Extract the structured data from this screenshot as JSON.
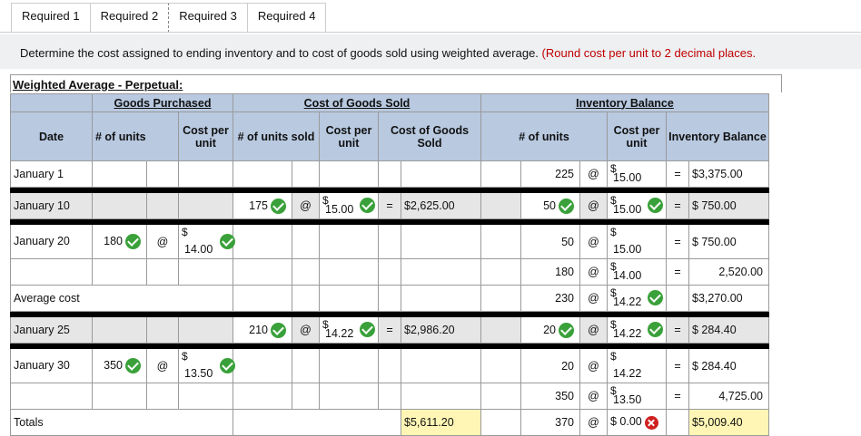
{
  "tabs": [
    "Required 1",
    "Required 2",
    "Required 3",
    "Required 4"
  ],
  "prompt": {
    "text": "Determine the cost assigned to ending inventory and to cost of goods sold using weighted average.",
    "note": "(Round cost per unit to 2 decimal places."
  },
  "section_title": "Weighted Average - Perpetual:",
  "headers": {
    "goods_purchased": "Goods Purchased",
    "cogs": "Cost of Goods Sold",
    "inv_balance": "Inventory Balance",
    "date": "Date",
    "num_units": "# of units",
    "cost_per_unit": "Cost per unit",
    "num_units_sold": "# of units sold",
    "cost_of_goods_sold": "Cost of Goods Sold",
    "inventory_balance": "Inventory Balance"
  },
  "symbols": {
    "at": "@",
    "eq": "=",
    "dollar": "$"
  },
  "rows": {
    "jan1": {
      "date": "January 1",
      "bal_units": "225",
      "bal_cost": "15.00",
      "bal_total": "$3,375.00"
    },
    "jan10": {
      "date": "January 10",
      "sold_units": "175",
      "sold_cost": "15.00",
      "cogs": "$2,625.00",
      "bal_units": "50",
      "bal_cost": "15.00",
      "bal_total": "$  750.00"
    },
    "jan20a": {
      "date": "January 20",
      "pur_units": "180",
      "pur_cost": "14.00",
      "bal_units": "50",
      "bal_cost": "15.00",
      "bal_total": "$  750.00"
    },
    "jan20b": {
      "bal_units": "180",
      "bal_cost": "14.00",
      "bal_total": "2,520.00"
    },
    "avg": {
      "date": "Average cost",
      "bal_units": "230",
      "bal_cost": "14.22",
      "bal_total": "$3,270.00"
    },
    "jan25": {
      "date": "January 25",
      "sold_units": "210",
      "sold_cost": "14.22",
      "cogs": "$2,986.20",
      "bal_units": "20",
      "bal_cost": "14.22",
      "bal_total": "$  284.40"
    },
    "jan30a": {
      "date": "January 30",
      "pur_units": "350",
      "pur_cost": "13.50",
      "bal_units": "20",
      "bal_cost": "14.22",
      "bal_total": "$  284.40"
    },
    "jan30b": {
      "bal_units": "350",
      "bal_cost": "13.50",
      "bal_total": "4,725.00"
    },
    "totals": {
      "date": "Totals",
      "cogs": "$5,611.20",
      "bal_units": "370",
      "bal_cost": "$ 0.00",
      "bal_total": "$5,009.40"
    }
  },
  "colors": {
    "header_bg": "#b8c9e0",
    "check": "#3aa13a",
    "error": "#d02020",
    "highlight": "#fff6b5",
    "note": "#c00000"
  }
}
